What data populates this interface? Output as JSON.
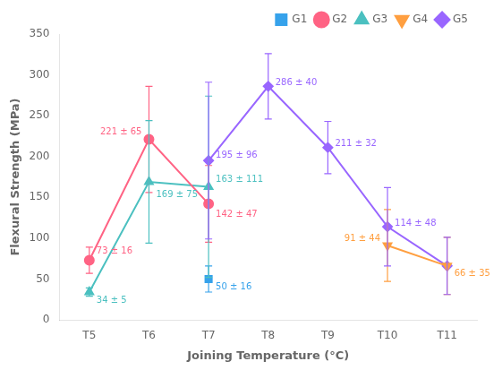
{
  "chart_data": {
    "type": "line",
    "x_label": "Joining Temperature (°C)",
    "y_label": "Flexural Strength (MPa)",
    "categories": [
      "T5",
      "T6",
      "T7",
      "T8",
      "T9",
      "T10",
      "T11"
    ],
    "series": [
      {
        "name": "G1",
        "marker": "square",
        "line_style": "solid",
        "values": [
          null,
          null,
          50,
          null,
          null,
          null,
          null
        ],
        "errors": [
          null,
          null,
          16,
          null,
          null,
          null,
          null
        ],
        "annotations": [
          {
            "x": "T7",
            "y": 50,
            "text": "50 ± 16"
          }
        ]
      },
      {
        "name": "G2",
        "marker": "circle",
        "line_style": "solid",
        "values": [
          73,
          221,
          142,
          null,
          null,
          null,
          null
        ],
        "errors": [
          16,
          65,
          47,
          null,
          null,
          null,
          null
        ],
        "annotations": [
          {
            "x": "T5",
            "y": 73,
            "text": "73 ± 16"
          },
          {
            "x": "T6",
            "y": 221,
            "text": "221 ± 65"
          },
          {
            "x": "T7",
            "y": 142,
            "text": "142 ± 47"
          }
        ]
      },
      {
        "name": "G3",
        "marker": "triangle_up",
        "line_style": "solid",
        "values": [
          34,
          169,
          163,
          null,
          null,
          null,
          null
        ],
        "errors": [
          5,
          75,
          111,
          null,
          null,
          null,
          null
        ],
        "annotations": [
          {
            "x": "T5",
            "y": 34,
            "text": "34 ± 5"
          },
          {
            "x": "T6",
            "y": 169,
            "text": "169 ± 75"
          },
          {
            "x": "T7",
            "y": 163,
            "text": "163 ± 111"
          }
        ]
      },
      {
        "name": "G4",
        "marker": "triangle_down",
        "line_style": "solid",
        "values": [
          null,
          null,
          null,
          null,
          null,
          91,
          66
        ],
        "errors": [
          null,
          null,
          null,
          null,
          null,
          44,
          35
        ],
        "annotations": [
          {
            "x": "T10",
            "y": 91,
            "text": "91 ± 44"
          },
          {
            "x": "T11",
            "y": 66,
            "text": "66 ± 35"
          }
        ]
      },
      {
        "name": "G5",
        "marker": "diamond",
        "line_style": "solid",
        "values": [
          null,
          null,
          195,
          286,
          211,
          114,
          66
        ],
        "errors": [
          null,
          null,
          96,
          40,
          32,
          48,
          35
        ],
        "annotations": [
          {
            "x": "T7",
            "y": 195,
            "text": "195 ± 96"
          },
          {
            "x": "T8",
            "y": 286,
            "text": "286 ± 40"
          },
          {
            "x": "T9",
            "y": 211,
            "text": "211 ± 32"
          },
          {
            "x": "T10",
            "y": 114,
            "text": "114 ± 48"
          }
        ]
      }
    ],
    "ylim": [
      0,
      350
    ],
    "yticks": [
      0,
      50,
      100,
      150,
      200,
      250,
      300,
      350
    ],
    "grid": false,
    "legend": "upper right"
  }
}
